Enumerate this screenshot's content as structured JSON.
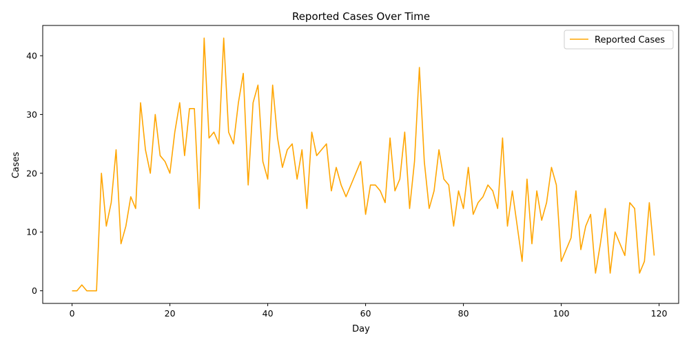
{
  "chart_data": {
    "type": "line",
    "title": "Reported Cases Over Time",
    "xlabel": "Day",
    "ylabel": "Cases",
    "xlim": [
      -6,
      124
    ],
    "ylim": [
      -2.15,
      45.15
    ],
    "xticks": [
      0,
      20,
      40,
      60,
      80,
      100,
      120
    ],
    "yticks": [
      0,
      10,
      20,
      30,
      40
    ],
    "grid": false,
    "legend_position": "top-right",
    "series": [
      {
        "name": "Reported Cases",
        "color": "#ffa500",
        "x": [
          0,
          1,
          2,
          3,
          4,
          5,
          6,
          7,
          8,
          9,
          10,
          11,
          12,
          13,
          14,
          15,
          16,
          17,
          18,
          19,
          20,
          21,
          22,
          23,
          24,
          25,
          26,
          27,
          28,
          29,
          30,
          31,
          32,
          33,
          34,
          35,
          36,
          37,
          38,
          39,
          40,
          41,
          42,
          43,
          44,
          45,
          46,
          47,
          48,
          49,
          50,
          51,
          52,
          53,
          54,
          55,
          56,
          57,
          58,
          59,
          60,
          61,
          62,
          63,
          64,
          65,
          66,
          67,
          68,
          69,
          70,
          71,
          72,
          73,
          74,
          75,
          76,
          77,
          78,
          79,
          80,
          81,
          82,
          83,
          84,
          85,
          86,
          87,
          88,
          89,
          90,
          91,
          92,
          93,
          94,
          95,
          96,
          97,
          98,
          99,
          100,
          101,
          102,
          103,
          104,
          105,
          106,
          107,
          108,
          109,
          110,
          111,
          112,
          113,
          114,
          115,
          116,
          117,
          118,
          119
        ],
        "y": [
          0,
          0,
          1,
          0,
          0,
          0,
          20,
          11,
          15,
          24,
          8,
          11,
          16,
          14,
          32,
          24,
          20,
          30,
          23,
          22,
          20,
          27,
          32,
          23,
          31,
          31,
          14,
          43,
          26,
          27,
          25,
          43,
          27,
          25,
          32,
          37,
          18,
          32,
          35,
          22,
          19,
          35,
          26,
          21,
          24,
          25,
          19,
          24,
          14,
          27,
          23,
          24,
          25,
          17,
          21,
          18,
          16,
          18,
          20,
          22,
          13,
          18,
          18,
          17,
          15,
          26,
          17,
          19,
          27,
          14,
          22,
          38,
          22,
          14,
          17,
          24,
          19,
          18,
          11,
          17,
          14,
          21,
          13,
          15,
          16,
          18,
          17,
          14,
          26,
          11,
          17,
          11,
          5,
          19,
          8,
          17,
          12,
          15,
          21,
          18,
          5,
          7,
          9,
          17,
          7,
          11,
          13,
          3,
          8,
          14,
          3,
          10,
          8,
          6,
          15,
          14,
          3,
          5,
          15,
          6
        ]
      }
    ]
  }
}
